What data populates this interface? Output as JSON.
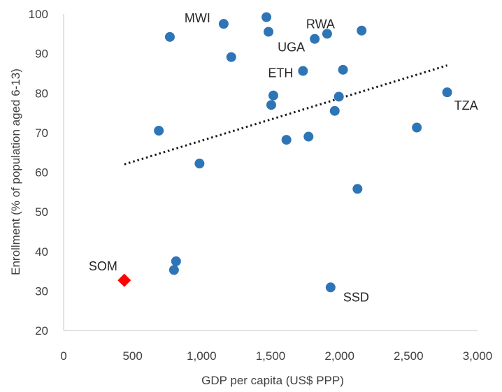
{
  "chart_data": {
    "type": "scatter",
    "xlabel": "GDP per capita (US$ PPP)",
    "ylabel": "Enrollment (% of population aged 6-13)",
    "xlim": [
      0,
      3000
    ],
    "ylim": [
      20,
      100
    ],
    "x_ticks": [
      "0",
      "500",
      "1,000",
      "1,500",
      "2,000",
      "2,500",
      "3,000"
    ],
    "y_ticks": [
      "20",
      "30",
      "40",
      "50",
      "60",
      "70",
      "80",
      "90",
      "100"
    ],
    "grid": false,
    "colors": {
      "points": "#2e75b6",
      "highlight": "#ff0000",
      "trend": "#1a1a1a",
      "axis": "#d9d9d9"
    },
    "points": [
      {
        "x": 1470,
        "y": 99.2,
        "label": ""
      },
      {
        "x": 1160,
        "y": 97.5,
        "label": "MWI"
      },
      {
        "x": 2160,
        "y": 95.8,
        "label": ""
      },
      {
        "x": 1485,
        "y": 95.5,
        "label": ""
      },
      {
        "x": 1910,
        "y": 95.0,
        "label": "RWA"
      },
      {
        "x": 770,
        "y": 94.2,
        "label": ""
      },
      {
        "x": 1820,
        "y": 93.7,
        "label": "UGA"
      },
      {
        "x": 1215,
        "y": 89.1,
        "label": ""
      },
      {
        "x": 2025,
        "y": 85.9,
        "label": ""
      },
      {
        "x": 1735,
        "y": 85.6,
        "label": "ETH"
      },
      {
        "x": 2780,
        "y": 80.2,
        "label": "TZA"
      },
      {
        "x": 1520,
        "y": 79.4,
        "label": ""
      },
      {
        "x": 1995,
        "y": 79.1,
        "label": ""
      },
      {
        "x": 1505,
        "y": 77.0,
        "label": ""
      },
      {
        "x": 1965,
        "y": 75.5,
        "label": ""
      },
      {
        "x": 2560,
        "y": 71.3,
        "label": ""
      },
      {
        "x": 690,
        "y": 70.5,
        "label": ""
      },
      {
        "x": 1775,
        "y": 69.0,
        "label": ""
      },
      {
        "x": 1615,
        "y": 68.2,
        "label": ""
      },
      {
        "x": 985,
        "y": 62.2,
        "label": ""
      },
      {
        "x": 2130,
        "y": 55.8,
        "label": ""
      },
      {
        "x": 815,
        "y": 37.5,
        "label": ""
      },
      {
        "x": 800,
        "y": 35.3,
        "label": ""
      },
      {
        "x": 1935,
        "y": 30.9,
        "label": "SSD"
      }
    ],
    "highlight": {
      "x": 440,
      "y": 32.7,
      "label": "SOM"
    },
    "trendline": {
      "x": [
        440,
        2780
      ],
      "y": [
        62.0,
        87.0
      ],
      "style": "dotted"
    }
  }
}
